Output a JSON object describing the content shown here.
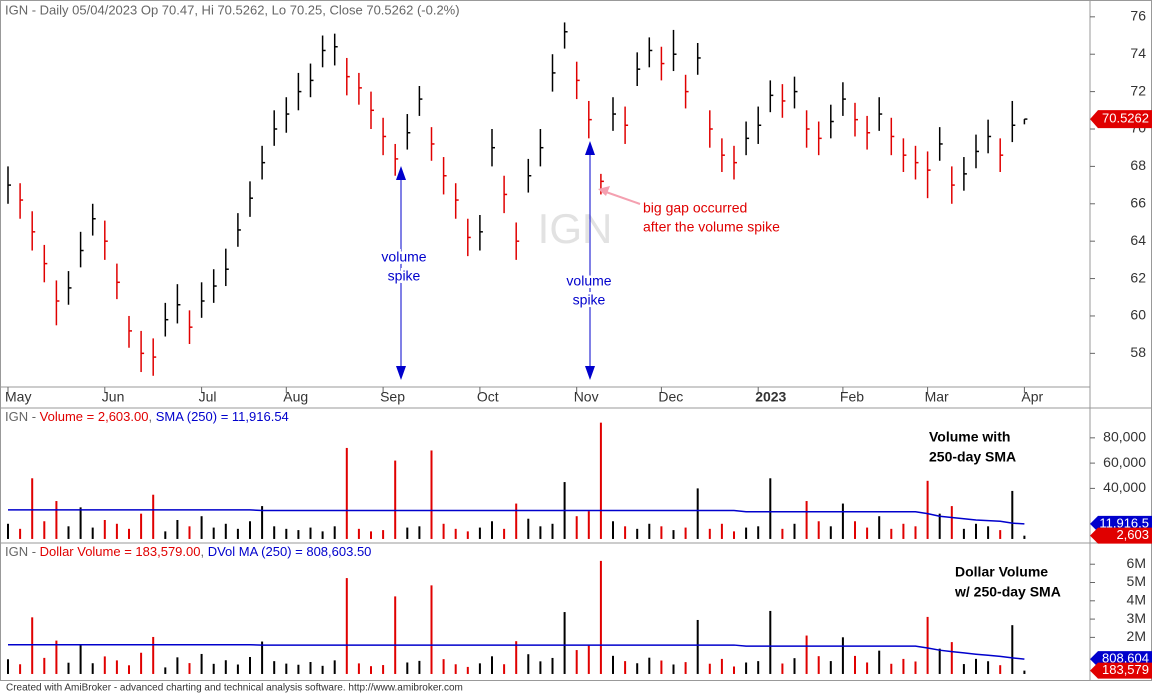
{
  "chart_data": [
    {
      "type": "ohlc",
      "header": "IGN - Daily 05/04/2023 Op 70.47, Hi 70.5262, Lo 70.25, Close 70.5262 (-0.2%)",
      "watermark": "IGN",
      "categories": [
        "May",
        null,
        null,
        null,
        null,
        null,
        null,
        null,
        "Jun",
        null,
        null,
        null,
        null,
        null,
        null,
        null,
        "Jul",
        null,
        null,
        null,
        null,
        null,
        null,
        "Aug",
        null,
        null,
        null,
        null,
        null,
        null,
        null,
        "Sep",
        null,
        null,
        null,
        null,
        null,
        null,
        null,
        "Oct",
        null,
        null,
        null,
        null,
        null,
        null,
        null,
        "Nov",
        null,
        null,
        null,
        null,
        null,
        null,
        "Dec",
        null,
        null,
        null,
        null,
        null,
        null,
        null,
        "2023",
        null,
        null,
        null,
        null,
        null,
        null,
        "Feb",
        null,
        null,
        null,
        null,
        null,
        null,
        "Mar",
        null,
        null,
        null,
        null,
        null,
        null,
        null,
        "Apr"
      ],
      "high": [
        68.0,
        67.1,
        65.6,
        63.8,
        61.9,
        62.4,
        64.5,
        66.0,
        65.1,
        62.8,
        60.0,
        59.2,
        58.8,
        60.7,
        61.7,
        60.3,
        61.8,
        62.5,
        63.6,
        65.5,
        67.2,
        69.1,
        71.0,
        71.7,
        73.0,
        73.5,
        75.0,
        75.1,
        73.8,
        73.0,
        72.0,
        70.6,
        69.2,
        70.8,
        72.3,
        70.1,
        68.5,
        67.1,
        65.2,
        65.4,
        70.0,
        67.5,
        65.0,
        68.4,
        70.0,
        74.0,
        75.7,
        73.6,
        71.5,
        67.6,
        71.7,
        71.2,
        74.1,
        74.9,
        74.4,
        75.3,
        72.9,
        74.6,
        71.0,
        69.5,
        69.1,
        70.4,
        71.2,
        72.6,
        72.4,
        72.8,
        71.0,
        70.4,
        71.3,
        72.5,
        71.4,
        70.7,
        71.7,
        70.6,
        69.5,
        69.1,
        68.8,
        70.1,
        68.0,
        68.5,
        69.7,
        70.5,
        69.5,
        71.5,
        70.53
      ],
      "low": [
        66.0,
        65.2,
        63.5,
        61.8,
        59.5,
        60.6,
        62.6,
        64.3,
        63.0,
        60.9,
        58.3,
        57.0,
        56.8,
        58.9,
        59.6,
        58.5,
        59.9,
        60.7,
        61.6,
        63.7,
        65.3,
        67.3,
        69.1,
        69.8,
        71.0,
        71.7,
        73.3,
        73.4,
        71.8,
        71.3,
        70.0,
        68.6,
        67.5,
        68.9,
        70.7,
        68.3,
        66.5,
        65.2,
        63.2,
        63.5,
        68.0,
        65.5,
        63.0,
        66.6,
        68.0,
        72.0,
        74.3,
        71.6,
        69.5,
        66.5,
        69.9,
        69.2,
        72.3,
        73.3,
        72.6,
        73.1,
        71.1,
        72.9,
        69.0,
        67.7,
        67.3,
        68.6,
        69.2,
        70.9,
        70.6,
        71.1,
        69.0,
        68.6,
        69.5,
        70.7,
        69.6,
        68.9,
        69.9,
        68.6,
        67.7,
        67.3,
        66.3,
        68.3,
        66.0,
        66.7,
        67.9,
        68.7,
        67.7,
        69.3,
        70.25
      ],
      "close": [
        67.0,
        66.2,
        64.5,
        62.8,
        60.8,
        61.5,
        63.5,
        65.2,
        64.0,
        61.8,
        59.2,
        58.0,
        57.8,
        59.8,
        60.6,
        59.4,
        60.8,
        61.6,
        62.5,
        64.6,
        66.3,
        68.2,
        70.0,
        70.8,
        72.0,
        72.6,
        74.2,
        74.4,
        72.8,
        72.2,
        71.0,
        69.6,
        68.4,
        69.8,
        71.6,
        69.2,
        67.5,
        66.2,
        64.2,
        64.5,
        69.0,
        66.5,
        64.0,
        67.5,
        69.0,
        73.0,
        75.2,
        72.6,
        70.5,
        67.2,
        70.8,
        70.2,
        73.2,
        74.2,
        73.5,
        74.0,
        72.0,
        73.8,
        70.0,
        68.6,
        68.2,
        69.5,
        70.2,
        71.8,
        71.5,
        72.0,
        70.0,
        69.5,
        70.4,
        71.6,
        70.5,
        69.8,
        70.8,
        69.6,
        68.6,
        68.2,
        67.8,
        69.2,
        67.0,
        67.6,
        68.8,
        69.6,
        68.6,
        70.2,
        70.53
      ],
      "up_color": "#000000",
      "down_color": "#e00000",
      "ylim": [
        56.2,
        76.9
      ],
      "yticks": [
        58,
        60,
        62,
        64,
        66,
        68,
        70,
        72,
        74,
        76
      ],
      "last_label": {
        "value": 70.5262,
        "label": "70.5262",
        "color": "#e00000"
      },
      "annotations": [
        {
          "lines": [
            "volume",
            "spike"
          ],
          "color": "#0000cc"
        },
        {
          "lines": [
            "volume",
            "spike"
          ],
          "color": "#0000cc"
        },
        {
          "lines": [
            "big gap occurred",
            "after the volume spike"
          ],
          "color": "#e00000"
        }
      ]
    },
    {
      "type": "bar",
      "header_parts": [
        {
          "text": "IGN - ",
          "color": "#666666"
        },
        {
          "text": "Volume = 2,603.00",
          "color": "#e00000"
        },
        {
          "text": ", ",
          "color": "#666666"
        },
        {
          "text": "SMA (250) = 11,916.54",
          "color": "#0000cc"
        }
      ],
      "note": [
        "Volume with",
        "250-day SMA"
      ],
      "values": [
        12000,
        8000,
        48000,
        14000,
        30000,
        10000,
        25000,
        9000,
        15000,
        12000,
        8000,
        20000,
        35000,
        6000,
        15000,
        10000,
        18000,
        9000,
        12000,
        8000,
        14000,
        26000,
        10000,
        8000,
        7000,
        9000,
        6000,
        10000,
        72000,
        8000,
        6000,
        7000,
        62000,
        9000,
        10000,
        70000,
        12000,
        8000,
        6000,
        9000,
        14000,
        8000,
        28000,
        16000,
        10000,
        12000,
        45000,
        18000,
        22000,
        92000,
        14000,
        10000,
        8000,
        12000,
        10000,
        7000,
        9000,
        40000,
        8000,
        12000,
        6000,
        9000,
        10000,
        48000,
        8000,
        12000,
        30000,
        14000,
        10000,
        28000,
        14000,
        9000,
        18000,
        8000,
        12000,
        10000,
        46000,
        20000,
        26000,
        8000,
        12000,
        10000,
        7000,
        38000,
        2603
      ],
      "ma": {
        "name": "SMA (250)",
        "color": "#0000cc",
        "values": [
          23000,
          23000,
          23000,
          23000,
          23000,
          23000,
          23000,
          23000,
          23000,
          23000,
          23000,
          23000,
          23000,
          23000,
          23000,
          23000,
          23000,
          23000,
          23000,
          23000,
          23000,
          22500,
          22500,
          22500,
          22500,
          22500,
          22500,
          22500,
          22500,
          22500,
          22500,
          22500,
          22500,
          22500,
          22500,
          22500,
          22500,
          22500,
          22500,
          22500,
          22500,
          22500,
          22500,
          22500,
          22500,
          22500,
          22500,
          22500,
          22500,
          22500,
          22500,
          22500,
          22500,
          22500,
          22500,
          22500,
          22500,
          22500,
          22500,
          22500,
          22500,
          21500,
          21500,
          21500,
          21500,
          21500,
          21500,
          21500,
          21500,
          21500,
          21500,
          21500,
          21500,
          21500,
          21500,
          21500,
          20000,
          18000,
          17000,
          16000,
          15000,
          14500,
          14000,
          12500,
          11916.54
        ]
      },
      "ylim": [
        -3200,
        103600
      ],
      "yticks": [
        {
          "value": 40000,
          "label": "40,000"
        },
        {
          "value": 60000,
          "label": "60,000"
        },
        {
          "value": 80000,
          "label": "80,000"
        }
      ],
      "last_labels": [
        {
          "value": 11916.54,
          "label": "11,916.5",
          "color": "#0000cc"
        },
        {
          "value": 2603,
          "label": "2,603",
          "color": "#e00000"
        }
      ]
    },
    {
      "type": "bar",
      "header_parts": [
        {
          "text": "IGN - ",
          "color": "#666666"
        },
        {
          "text": "Dollar Volume = 183,579.00",
          "color": "#e00000"
        },
        {
          "text": ", ",
          "color": "#666666"
        },
        {
          "text": "DVol MA (250) = 808,603.50",
          "color": "#0000cc"
        }
      ],
      "note": [
        "Dollar Volume",
        "w/ 250-day SMA"
      ],
      "values": [
        804000,
        530000,
        3096000,
        879000,
        1824000,
        615000,
        1588000,
        587000,
        960000,
        742000,
        474000,
        1160000,
        2023000,
        359000,
        909000,
        594000,
        1094000,
        554000,
        750000,
        517000,
        928000,
        1773000,
        700000,
        566000,
        504000,
        653000,
        445000,
        744000,
        5242000,
        578000,
        426000,
        487000,
        4241000,
        628000,
        716000,
        4844000,
        810000,
        530000,
        385000,
        581000,
        966000,
        532000,
        1792000,
        1080000,
        690000,
        876000,
        3384000,
        1307000,
        1551000,
        6182000,
        991000,
        702000,
        586000,
        890000,
        735000,
        518000,
        648000,
        2952000,
        560000,
        823000,
        409000,
        626000,
        702000,
        3446000,
        572000,
        864000,
        2100000,
        973000,
        704000,
        2005000,
        987000,
        628000,
        1274000,
        557000,
        823000,
        682000,
        3119000,
        1384000,
        1742000,
        541000,
        826000,
        696000,
        480000,
        2668000,
        183579
      ],
      "ma": {
        "name": "DVol MA (250)",
        "color": "#0000cc",
        "values": [
          1600000,
          1600000,
          1600000,
          1600000,
          1600000,
          1600000,
          1600000,
          1600000,
          1600000,
          1600000,
          1600000,
          1600000,
          1600000,
          1600000,
          1600000,
          1600000,
          1600000,
          1600000,
          1600000,
          1600000,
          1600000,
          1580000,
          1580000,
          1580000,
          1580000,
          1580000,
          1580000,
          1580000,
          1580000,
          1580000,
          1580000,
          1580000,
          1580000,
          1580000,
          1580000,
          1580000,
          1580000,
          1580000,
          1580000,
          1580000,
          1580000,
          1580000,
          1580000,
          1580000,
          1580000,
          1580000,
          1580000,
          1580000,
          1580000,
          1580000,
          1580000,
          1580000,
          1580000,
          1580000,
          1580000,
          1580000,
          1580000,
          1580000,
          1580000,
          1580000,
          1580000,
          1520000,
          1520000,
          1520000,
          1520000,
          1520000,
          1520000,
          1520000,
          1520000,
          1520000,
          1520000,
          1520000,
          1520000,
          1520000,
          1520000,
          1520000,
          1420000,
          1300000,
          1220000,
          1150000,
          1080000,
          1020000,
          960000,
          880000,
          808603.5
        ]
      },
      "ylim": [
        -330000,
        7160000
      ],
      "yticks": [
        {
          "value": 2000000,
          "label": "2M"
        },
        {
          "value": 3000000,
          "label": "3M"
        },
        {
          "value": 4000000,
          "label": "4M"
        },
        {
          "value": 5000000,
          "label": "5M"
        },
        {
          "value": 6000000,
          "label": "6M"
        }
      ],
      "last_labels": [
        {
          "value": 808603.5,
          "label": "808,604",
          "color": "#0000cc"
        },
        {
          "value": 183579,
          "label": "183,579",
          "color": "#e00000"
        }
      ]
    }
  ],
  "footer": "Created with AmiBroker - advanced charting and technical analysis software. http://www.amibroker.com"
}
